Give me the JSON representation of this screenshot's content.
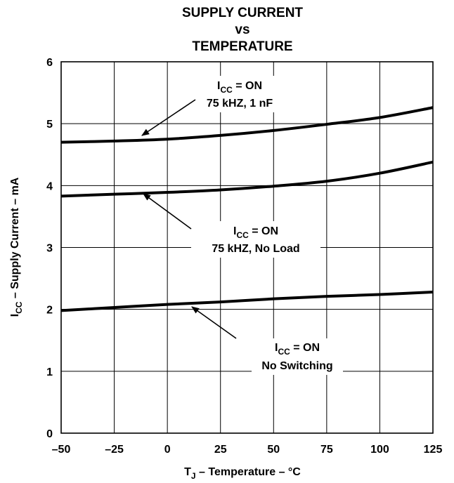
{
  "chart_data": {
    "type": "line",
    "title": [
      "SUPPLY CURRENT",
      "vs",
      "TEMPERATURE"
    ],
    "xlabel": {
      "pre": "T",
      "sub": "J",
      "post": " – Temperature – °C"
    },
    "ylabel": {
      "pre": "I",
      "sub": "CC",
      "post": " – Supply Current – mA"
    },
    "xlim": [
      -50,
      125
    ],
    "ylim": [
      0,
      6
    ],
    "xticks": [
      "–50",
      "–25",
      "0",
      "25",
      "50",
      "75",
      "100",
      "125"
    ],
    "xtick_values": [
      -50,
      -25,
      0,
      25,
      50,
      75,
      100,
      125
    ],
    "yticks": [
      "0",
      "1",
      "2",
      "3",
      "4",
      "5",
      "6"
    ],
    "ytick_values": [
      0,
      1,
      2,
      3,
      4,
      5,
      6
    ],
    "grid": true,
    "series": [
      {
        "x": [
          -50,
          -25,
          0,
          25,
          50,
          75,
          100,
          125
        ],
        "values": [
          4.7,
          4.72,
          4.75,
          4.81,
          4.89,
          4.99,
          5.1,
          5.26
        ]
      },
      {
        "x": [
          -50,
          -25,
          0,
          25,
          50,
          75,
          100,
          125
        ],
        "values": [
          3.83,
          3.86,
          3.89,
          3.93,
          3.99,
          4.07,
          4.2,
          4.38
        ]
      },
      {
        "x": [
          -50,
          -25,
          0,
          25,
          50,
          75,
          100,
          125
        ],
        "values": [
          1.98,
          2.03,
          2.08,
          2.12,
          2.17,
          2.21,
          2.24,
          2.28
        ]
      }
    ],
    "annotations": [
      {
        "line1_pre": "I",
        "line1_sub": "CC",
        "line1_post": " = ON",
        "line2": "75 kHZ, 1 nF"
      },
      {
        "line1_pre": "I",
        "line1_sub": "CC",
        "line1_post": " = ON",
        "line2": "75 kHZ, No Load"
      },
      {
        "line1_pre": "I",
        "line1_sub": "CC",
        "line1_post": " = ON",
        "line2": "No Switching"
      }
    ]
  }
}
